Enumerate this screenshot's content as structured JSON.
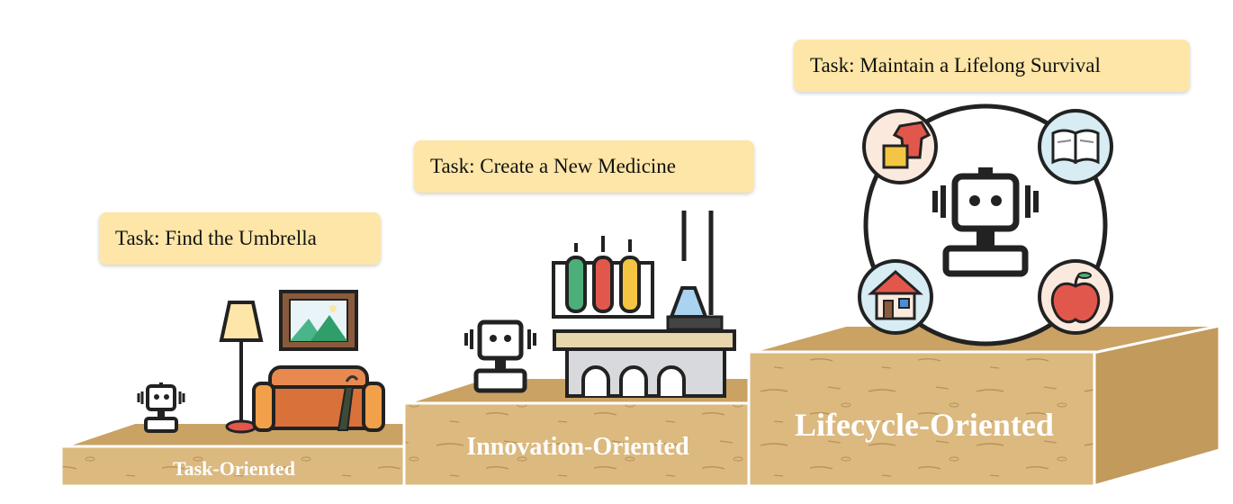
{
  "levels": [
    {
      "task": "Task: Find the Umbrella",
      "label": "Task-Oriented"
    },
    {
      "task": "Task: Create a New Medicine",
      "label": "Innovation-Oriented"
    },
    {
      "task": "Task: Maintain a Lifelong Survival",
      "label": "Lifecycle-Oriented"
    }
  ],
  "icons": [
    "robot-icon",
    "floor-lamp-icon",
    "picture-frame-icon",
    "sofa-icon",
    "umbrella-icon",
    "test-tubes-icon",
    "flask-icon",
    "lab-bench-icon",
    "clothes-icon",
    "book-icon",
    "house-icon",
    "apple-icon"
  ],
  "colors": {
    "task_box": "#fde6a7",
    "wood": "#d9b57a",
    "wood_top": "#c9a264",
    "wood_dark": "#b08850"
  }
}
